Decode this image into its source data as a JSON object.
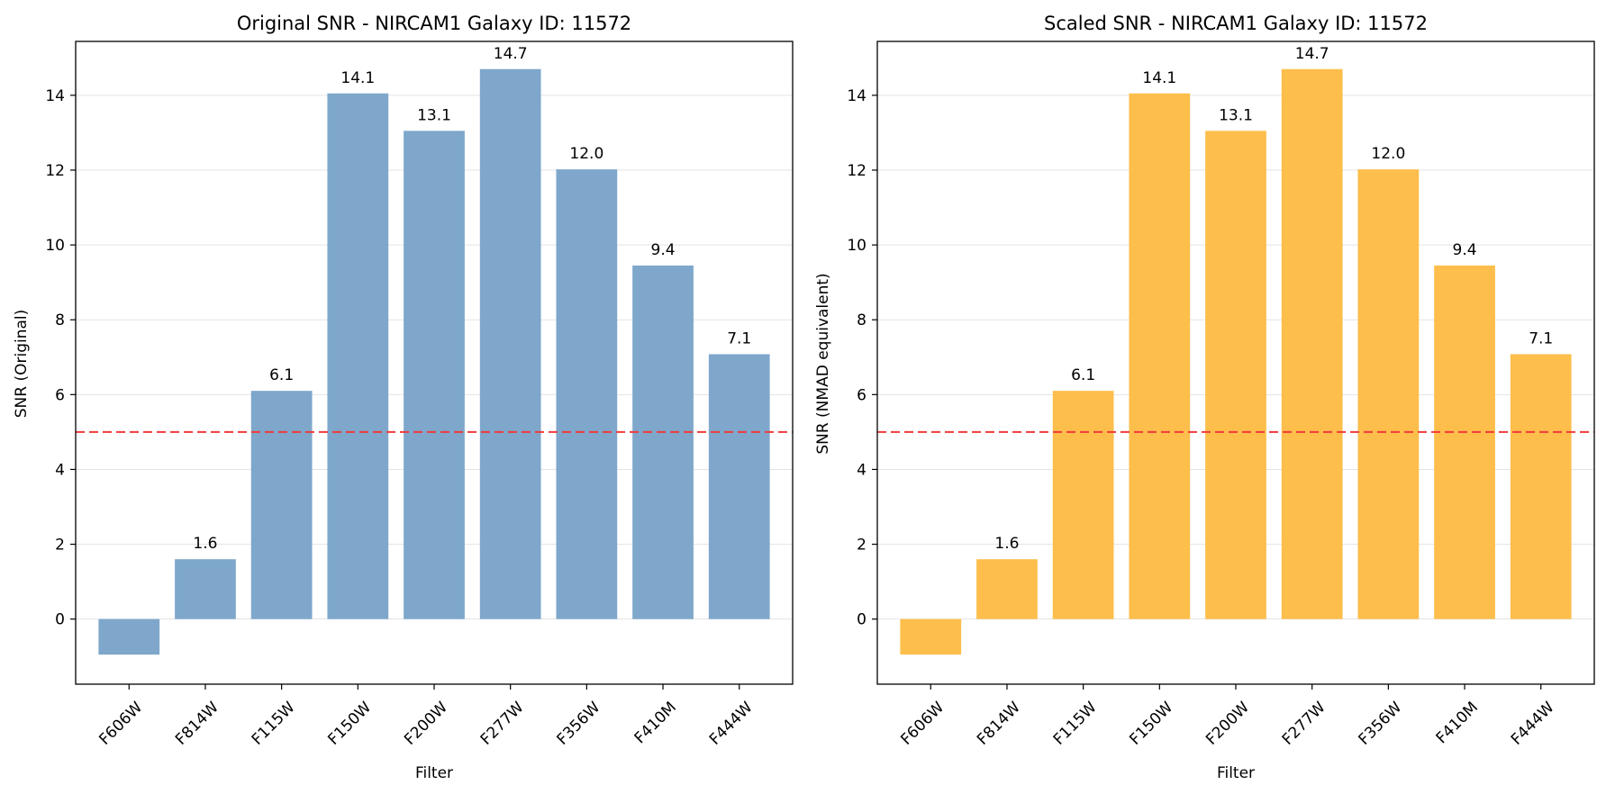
{
  "colors": {
    "left_bar": "#7ea7cb",
    "right_bar": "#fdbe4c",
    "threshold_line": "#f03a3a",
    "grid": "#e3e3e3"
  },
  "chart_data": [
    {
      "type": "bar",
      "title": "Original SNR - NIRCAM1 Galaxy ID: 11572",
      "xlabel": "Filter",
      "ylabel": "SNR (Original)",
      "categories": [
        "F606W",
        "F814W",
        "F115W",
        "F150W",
        "F200W",
        "F277W",
        "F356W",
        "F410M",
        "F444W"
      ],
      "values": [
        -0.95,
        1.6,
        6.1,
        14.05,
        13.05,
        14.7,
        12.02,
        9.45,
        7.08
      ],
      "data_labels": [
        "",
        "1.6",
        "6.1",
        "14.1",
        "13.1",
        "14.7",
        "12.0",
        "9.4",
        "7.1"
      ],
      "ylim": [
        -1.74,
        15.44
      ],
      "yticks": [
        0,
        2,
        4,
        6,
        8,
        10,
        12,
        14
      ],
      "threshold": 5,
      "grid": "y",
      "bar_color": "#7ea7cb"
    },
    {
      "type": "bar",
      "title": "Scaled SNR - NIRCAM1 Galaxy ID: 11572",
      "xlabel": "Filter",
      "ylabel": "SNR (NMAD equivalent)",
      "categories": [
        "F606W",
        "F814W",
        "F115W",
        "F150W",
        "F200W",
        "F277W",
        "F356W",
        "F410M",
        "F444W"
      ],
      "values": [
        -0.95,
        1.6,
        6.1,
        14.05,
        13.05,
        14.7,
        12.02,
        9.45,
        7.08
      ],
      "data_labels": [
        "",
        "1.6",
        "6.1",
        "14.1",
        "13.1",
        "14.7",
        "12.0",
        "9.4",
        "7.1"
      ],
      "ylim": [
        -1.74,
        15.44
      ],
      "yticks": [
        0,
        2,
        4,
        6,
        8,
        10,
        12,
        14
      ],
      "threshold": 5,
      "grid": "y",
      "bar_color": "#fdbe4c"
    }
  ]
}
